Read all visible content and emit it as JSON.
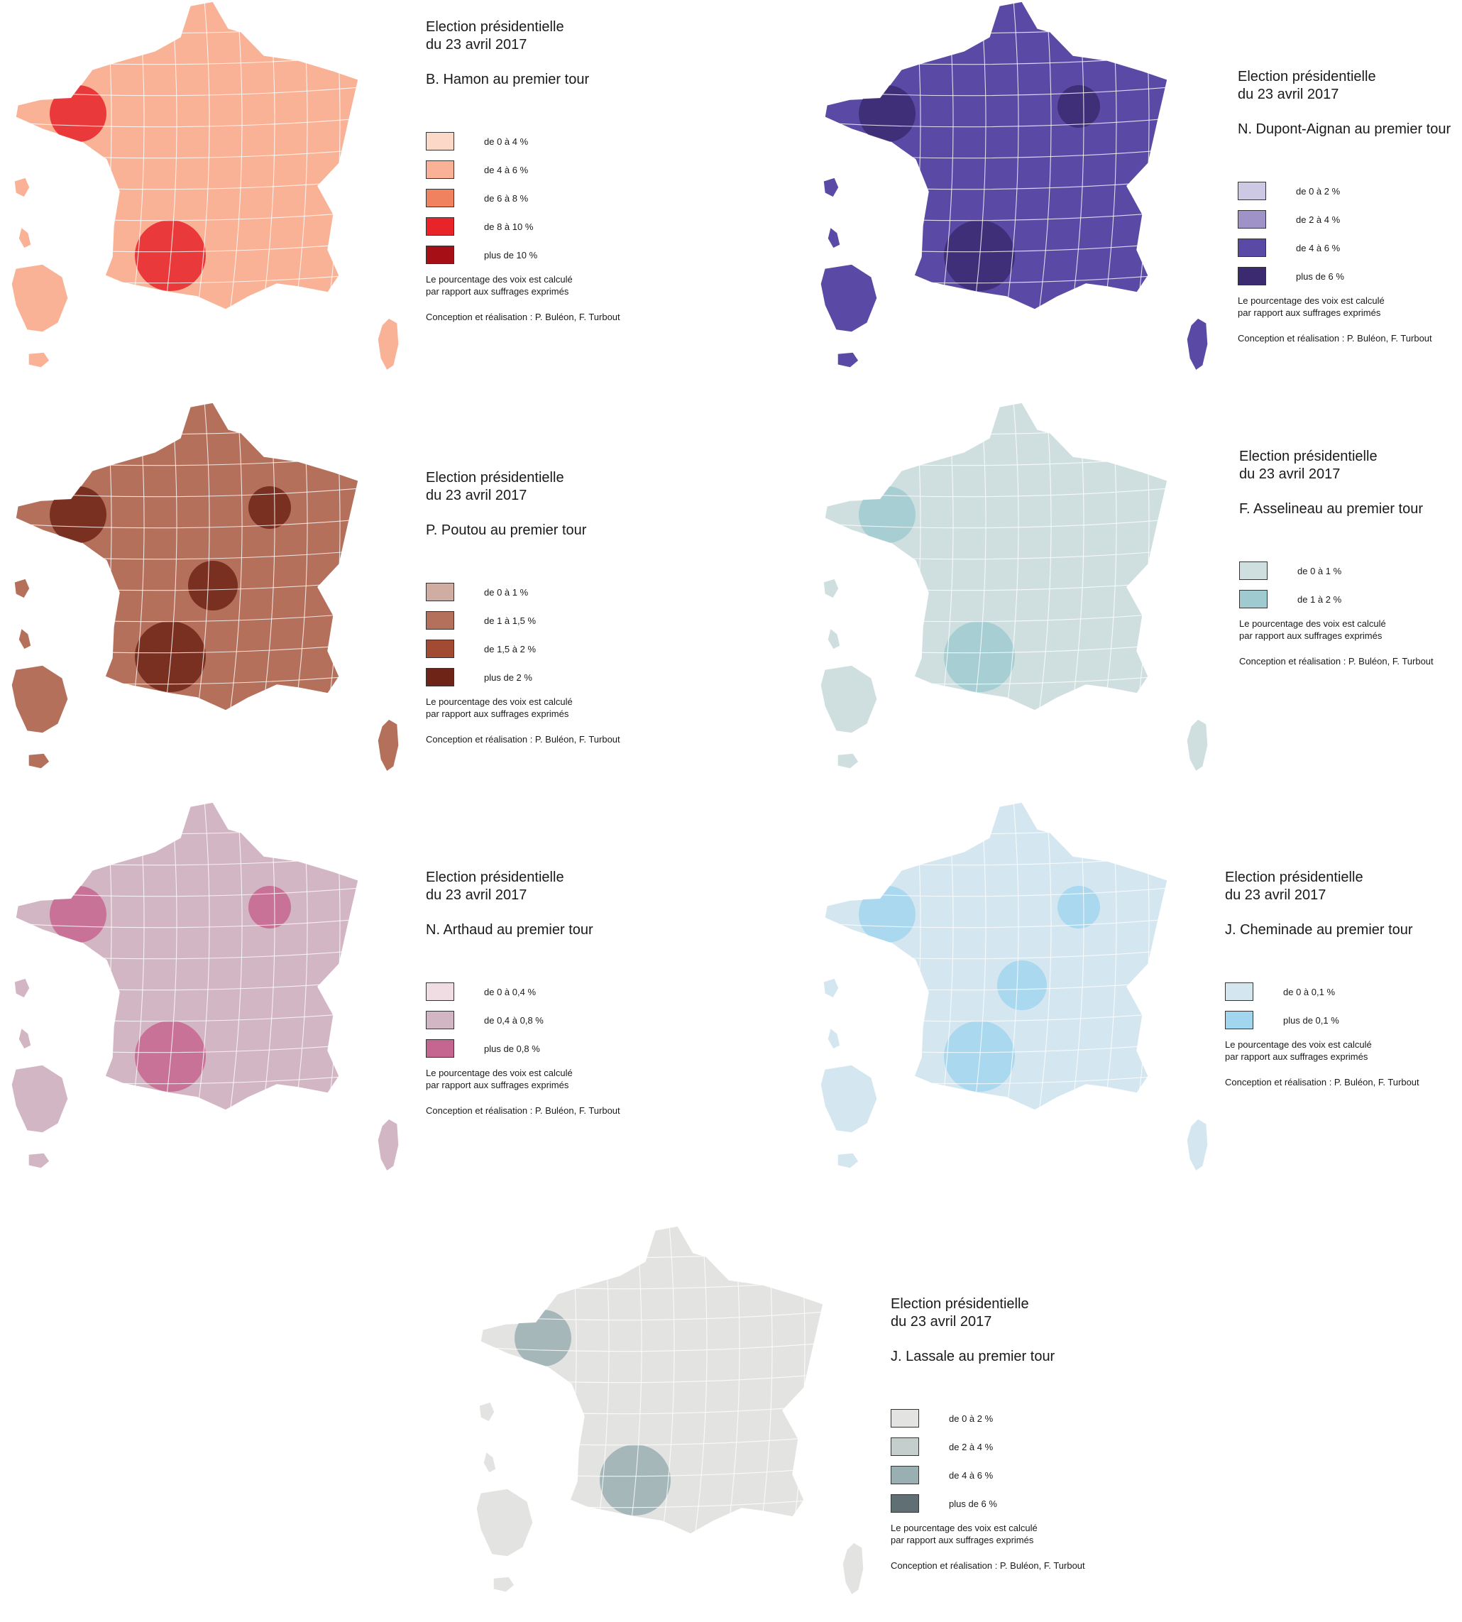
{
  "shared": {
    "title_line1": "Election présidentielle",
    "title_line2": "du 23 avril 2017",
    "note_line1": "Le pourcentage des voix est calculé",
    "note_line2": "par rapport aux suffrages exprimés",
    "credit": "Conception et réalisation : P. Buléon, F. Turbout"
  },
  "maps": [
    {
      "id": "hamon",
      "subtitle": "B. Hamon au premier tour",
      "legend": [
        {
          "label": "de 0 à 4 %",
          "color": "#fcd8c8"
        },
        {
          "label": "de 4 à 6 %",
          "color": "#f9b296"
        },
        {
          "label": "de 6 à 8 %",
          "color": "#f08260"
        },
        {
          "label": "de 8 à 10 %",
          "color": "#e8232a"
        },
        {
          "label": "plus de 10 %",
          "color": "#a50f15"
        }
      ]
    },
    {
      "id": "dupont-aignan",
      "subtitle": "N. Dupont-Aignan au premier tour",
      "legend": [
        {
          "label": "de 0 à  2 %",
          "color": "#cdc9e4"
        },
        {
          "label": "de 2 à 4 %",
          "color": "#9e92c8"
        },
        {
          "label": "de 4 à 6 %",
          "color": "#5b4aa5"
        },
        {
          "label": "plus de 6 %",
          "color": "#3b2a70"
        }
      ]
    },
    {
      "id": "poutou",
      "subtitle": "P. Poutou au premier tour",
      "legend": [
        {
          "label": "de 0 à  1 %",
          "color": "#d0ada3"
        },
        {
          "label": "de 1 à 1,5 %",
          "color": "#b4705b"
        },
        {
          "label": "de 1,5 à 2 %",
          "color": "#a34a33"
        },
        {
          "label": "plus de 2 %",
          "color": "#6e2417"
        }
      ]
    },
    {
      "id": "asselineau",
      "subtitle": "F. Asselineau au premier tour",
      "legend": [
        {
          "label": "de 0 à  1 %",
          "color": "#cfdfe0"
        },
        {
          "label": "de 1 à 2 %",
          "color": "#9fcbd0"
        }
      ]
    },
    {
      "id": "arthaud",
      "subtitle": "N. Arthaud au premier tour",
      "legend": [
        {
          "label": "de 0 à  0,4 %",
          "color": "#efdde3"
        },
        {
          "label": "de 0,4 à 0,8 %",
          "color": "#d3b6c3"
        },
        {
          "label": "plus de 0,8 %",
          "color": "#c56690"
        }
      ]
    },
    {
      "id": "cheminade",
      "subtitle": "J. Cheminade au premier tour",
      "legend": [
        {
          "label": "de 0 à  0,1 %",
          "color": "#d4e6f0"
        },
        {
          "label": "plus de 0,1 %",
          "color": "#a2d5ee"
        }
      ]
    },
    {
      "id": "lassale",
      "subtitle": "J. Lassale au premier tour",
      "legend": [
        {
          "label": "de 0 à  2 %",
          "color": "#e3e4e2"
        },
        {
          "label": "de 2 à 4 %",
          "color": "#c4cfcd"
        },
        {
          "label": "de 4 à 6 %",
          "color": "#9aafb1"
        },
        {
          "label": "plus de 6 %",
          "color": "#5f6f74"
        }
      ]
    }
  ]
}
